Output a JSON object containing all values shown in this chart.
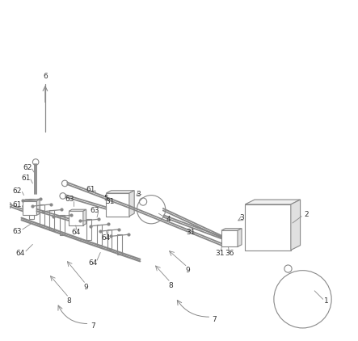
{
  "background_color": "#ffffff",
  "line_color": "#888888",
  "dark_line_color": "#555555",
  "label_color": "#333333",
  "fig_width": 4.43,
  "fig_height": 4.22,
  "dpi": 100
}
